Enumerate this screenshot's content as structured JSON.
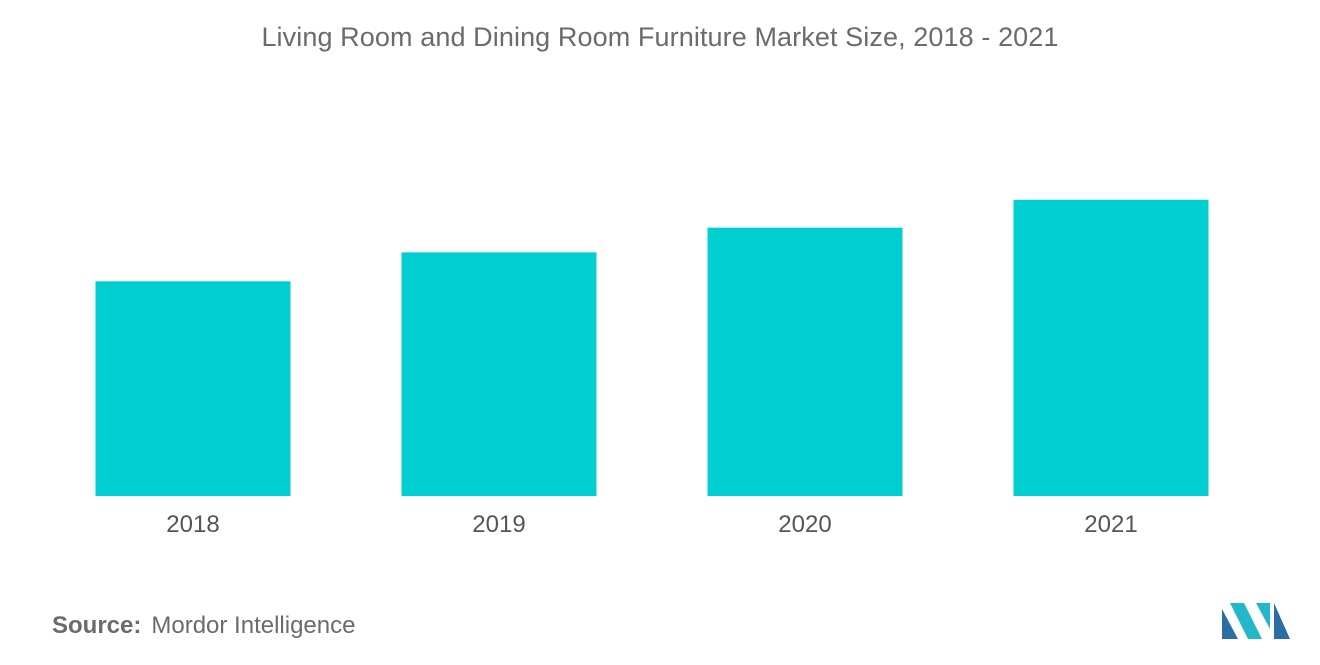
{
  "title": "Living Room and Dining Room Furniture Market Size, 2018 - 2021",
  "source": {
    "label": "Source:",
    "value": "Mordor Intelligence"
  },
  "logo": {
    "icon": "mordor-intelligence-logo-icon",
    "colors": [
      "#2b6ea5",
      "#23b7c9"
    ]
  },
  "chart_data": {
    "type": "bar",
    "categories": [
      "2018",
      "2019",
      "2020",
      "2021"
    ],
    "values": [
      100,
      113.5,
      125,
      138
    ],
    "ylim": [
      0,
      150
    ],
    "bar_color": "#00ced1",
    "grid": false,
    "legend": "none",
    "xlabel": "",
    "ylabel": ""
  }
}
